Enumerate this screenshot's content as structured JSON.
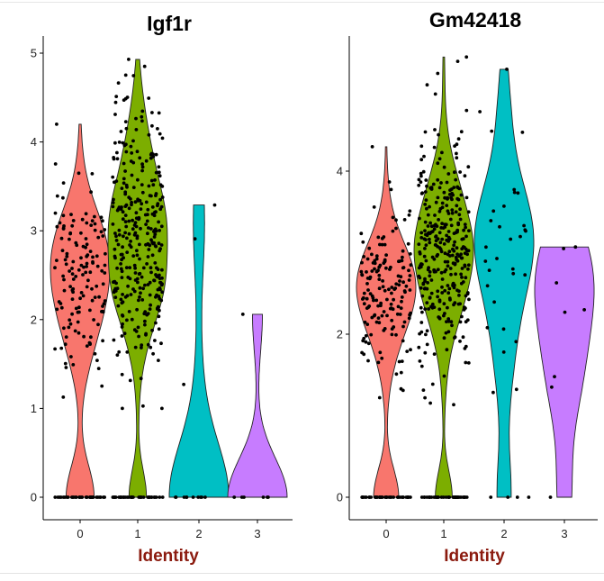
{
  "colors": {
    "0": "#F8766D",
    "1": "#7CAE00",
    "2": "#00BFC4",
    "3": "#C77CFF",
    "xlabel": "#8B1A0E"
  },
  "chart_data": [
    {
      "type": "violin",
      "title": "Igf1r",
      "xlabel": "Identity",
      "ylabel": "",
      "categories": [
        "0",
        "1",
        "2",
        "3"
      ],
      "yticks": [
        "0",
        "1",
        "2",
        "3",
        "4",
        "5"
      ],
      "ylim": [
        0,
        5.05
      ],
      "grid": false,
      "legend": "none",
      "violins": [
        {
          "category": "0",
          "max": 4.2,
          "zeros": 35,
          "nonzero": 140,
          "mu": 2.5,
          "sd": 0.55
        },
        {
          "category": "1",
          "max": 4.93,
          "zeros": 35,
          "nonzero": 330,
          "mu": 2.9,
          "sd": 0.75
        },
        {
          "category": "2",
          "max": 3.29,
          "zeros": 10,
          "nonzero": 3,
          "points": [
            1.27,
            2.91,
            3.29
          ]
        },
        {
          "category": "3",
          "max": 2.06,
          "zeros": 6,
          "nonzero": 1,
          "points": [
            2.06
          ]
        }
      ]
    },
    {
      "type": "violin",
      "title": "Gm42418",
      "xlabel": "Identity",
      "ylabel": "",
      "categories": [
        "0",
        "1",
        "2",
        "3"
      ],
      "yticks": [
        "0",
        "2",
        "4"
      ],
      "ylim": [
        0,
        5.3
      ],
      "grid": false,
      "legend": "none",
      "violins": [
        {
          "category": "0",
          "max": 4.3,
          "zeros": 40,
          "nonzero": 160,
          "mu": 2.55,
          "sd": 0.5
        },
        {
          "category": "1",
          "max": 5.4,
          "zeros": 40,
          "nonzero": 330,
          "mu": 3.0,
          "sd": 0.75
        },
        {
          "category": "2",
          "max": 5.25,
          "zeros": 4,
          "nonzero": 30,
          "mu": 2.9,
          "sd": 0.85
        },
        {
          "category": "3",
          "max": 3.07,
          "zeros": 1,
          "nonzero": 7,
          "points": [
            1.35,
            1.48,
            2.27,
            2.3,
            2.63,
            3.05,
            3.07
          ]
        }
      ]
    }
  ]
}
